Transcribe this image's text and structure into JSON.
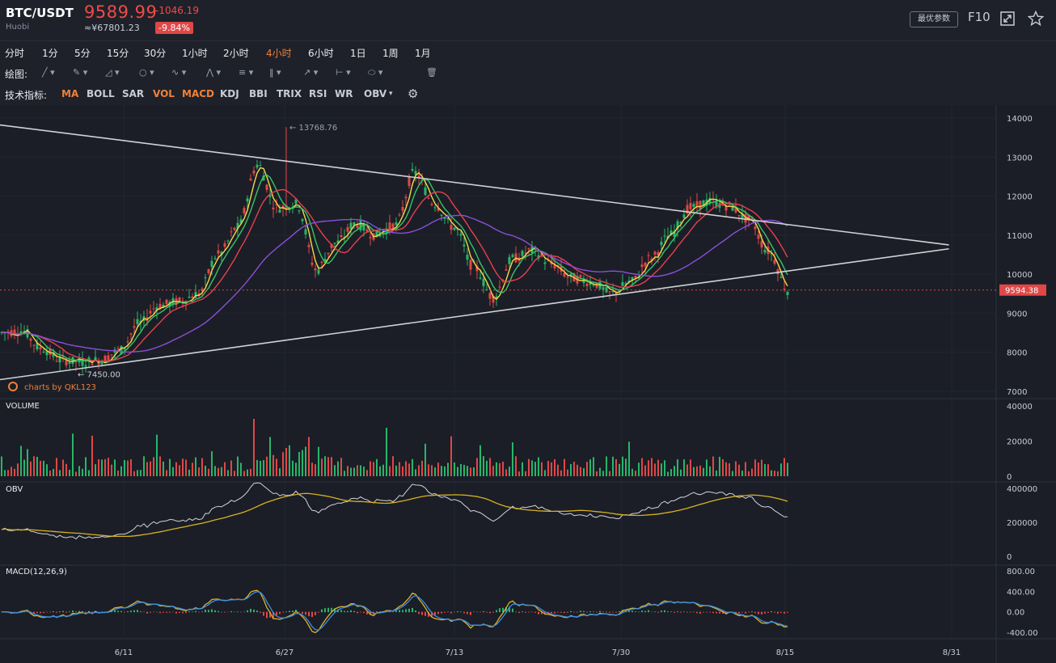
{
  "header": {
    "symbol": "BTC/USDT",
    "exchange": "Huobi",
    "price": "9589.99",
    "price_cny": "≈¥67801.23",
    "change": "-1046.19",
    "change_pct": "-9.84%",
    "param_button": "最优参数",
    "f10_label": "F10",
    "accent_down": "#f04a4a",
    "accent_active": "#f0803a"
  },
  "periods": [
    {
      "label": "分时",
      "active": false
    },
    {
      "label": "1分",
      "active": false
    },
    {
      "label": "5分",
      "active": false
    },
    {
      "label": "15分",
      "active": false
    },
    {
      "label": "30分",
      "active": false
    },
    {
      "label": "1小时",
      "active": false
    },
    {
      "label": "2小时",
      "active": false
    },
    {
      "label": "4小时",
      "active": true
    },
    {
      "label": "6小时",
      "active": false
    },
    {
      "label": "1日",
      "active": false
    },
    {
      "label": "1周",
      "active": false
    },
    {
      "label": "1月",
      "active": false
    }
  ],
  "drawing": {
    "label": "绘图:",
    "tools": [
      "line-tool-icon",
      "pencil-tool-icon",
      "triangle-tool-icon",
      "circle-tool-icon",
      "wave-tool-icon",
      "pattern-tool-icon",
      "fibonacci-tool-icon",
      "channel-tool-icon",
      "arrow-tool-icon",
      "range-tool-icon",
      "label-tool-icon",
      "trash-icon"
    ]
  },
  "indicators": {
    "label": "技术指标:",
    "items": [
      {
        "label": "MA",
        "on": true
      },
      {
        "label": "BOLL",
        "on": false
      },
      {
        "label": "SAR",
        "on": false
      },
      {
        "label": "VOL",
        "on": true
      },
      {
        "label": "MACD",
        "on": true
      },
      {
        "label": "KDJ",
        "on": false
      },
      {
        "label": "BBI",
        "on": false
      },
      {
        "label": "TRIX",
        "on": false
      },
      {
        "label": "RSI",
        "on": false
      },
      {
        "label": "WR",
        "on": false
      },
      {
        "label": "OBV",
        "on": false
      }
    ],
    "settings_icon": "gear-icon"
  },
  "watermark": "charts by QKL123",
  "chart_data": [
    {
      "type": "candlestick",
      "title": "BTC/USDT",
      "y_ticks": [
        "14000",
        "13000",
        "12000",
        "11000",
        "10000",
        "9000",
        "8000",
        "7000"
      ],
      "ylim": [
        7000,
        14000
      ],
      "x_ticks": [
        "6/11",
        "6/27",
        "7/13",
        "7/30",
        "8/15",
        "8/31"
      ],
      "high_label": "13768.76",
      "low_label": "7450.00",
      "last_price_label": "9594.38",
      "close_anchors": [
        [
          0,
          8500
        ],
        [
          1,
          8550
        ],
        [
          2,
          8100
        ],
        [
          3,
          7800
        ],
        [
          4,
          7750
        ],
        [
          5,
          7800
        ],
        [
          6,
          8050
        ],
        [
          7,
          8750
        ],
        [
          8,
          9200
        ],
        [
          9,
          9300
        ],
        [
          10,
          9500
        ],
        [
          11,
          10500
        ],
        [
          12,
          11200
        ],
        [
          13,
          12800
        ],
        [
          14,
          11700
        ],
        [
          15,
          11800
        ],
        [
          16,
          10100
        ],
        [
          17,
          10800
        ],
        [
          18,
          11300
        ],
        [
          19,
          11000
        ],
        [
          20,
          11250
        ],
        [
          21,
          12600
        ],
        [
          22,
          11800
        ],
        [
          23,
          11200
        ],
        [
          24,
          10200
        ],
        [
          25,
          9400
        ],
        [
          26,
          10400
        ],
        [
          27,
          10600
        ],
        [
          28,
          10250
        ],
        [
          29,
          9900
        ],
        [
          30,
          9800
        ],
        [
          31,
          9500
        ],
        [
          32,
          9800
        ],
        [
          33,
          10400
        ],
        [
          34,
          11000
        ],
        [
          35,
          11700
        ],
        [
          36,
          11850
        ],
        [
          37,
          11750
        ],
        [
          38,
          11400
        ],
        [
          39,
          10600
        ],
        [
          40,
          9590
        ]
      ],
      "series": [
        {
          "name": "MA5",
          "color": "#f5d84a"
        },
        {
          "name": "MA10",
          "color": "#36c46a"
        },
        {
          "name": "MA20",
          "color": "#e8404f"
        },
        {
          "name": "MA60",
          "color": "#8b4fd8"
        }
      ],
      "trendlines": [
        {
          "label": "upper",
          "from": [
            -9,
            14400
          ],
          "to": [
            48,
            10750
          ]
        },
        {
          "label": "lower",
          "from": [
            0,
            7300
          ],
          "to": [
            48,
            10650
          ]
        }
      ]
    },
    {
      "type": "bar",
      "title": "VOLUME",
      "y_ticks": [
        "40000",
        "20000",
        "0"
      ],
      "ylim": [
        0,
        40000
      ]
    },
    {
      "type": "line",
      "title": "OBV",
      "y_ticks": [
        "400000",
        "200000",
        "0"
      ],
      "ylim": [
        0,
        400000
      ]
    },
    {
      "type": "line",
      "title": "MACD(12,26,9)",
      "y_ticks": [
        "800.00",
        "400.00",
        "0.00",
        "-400.00"
      ],
      "ylim": [
        -400,
        800
      ]
    }
  ]
}
